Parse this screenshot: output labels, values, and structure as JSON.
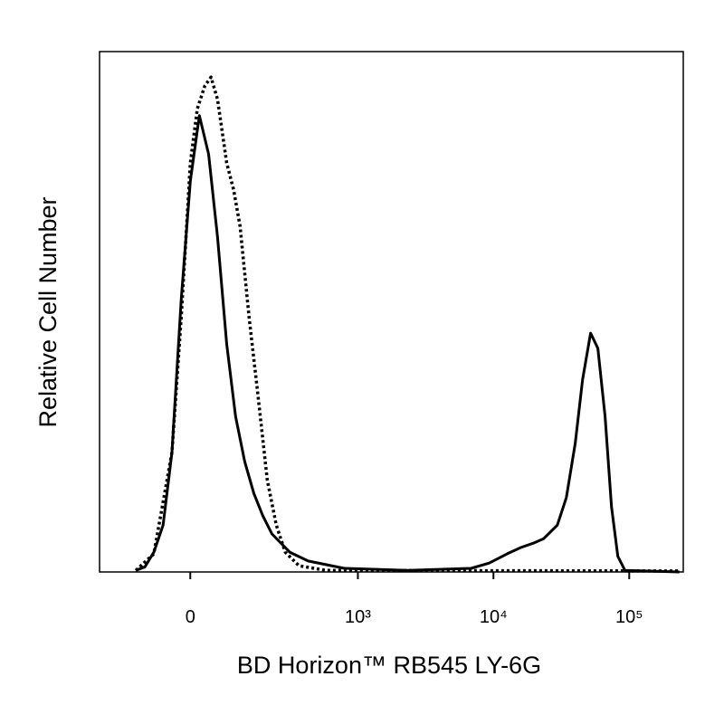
{
  "chart_data": {
    "type": "line",
    "xlabel": "BD Horizon™ RB545 LY-6G",
    "ylabel": "Relative Cell Number",
    "xscale": "biexponential",
    "xlim": [
      -260,
      250000
    ],
    "xticks": [
      0,
      {
        "value": 1000,
        "label": "10³"
      },
      {
        "value": 10000,
        "label": "10⁴"
      },
      {
        "value": 100000,
        "label": "10⁵"
      }
    ],
    "ylim": [
      0,
      100
    ],
    "grid": false,
    "series": [
      {
        "color": "#000000",
        "linestyle": "solid",
        "x": [
          -124,
          -99,
          -77,
          -56,
          -37,
          -18,
          0,
          18,
          37,
          56,
          77,
          99,
          124,
          152,
          183,
          219,
          305,
          424,
          792,
          2335,
          6840,
          9300,
          12640,
          15900,
          20000,
          23400,
          29500,
          34400,
          40000,
          45300,
          51900,
          58700,
          66400,
          74000,
          82400,
          93100,
          234000
        ],
        "values": [
          0.3,
          1.0,
          3.8,
          9.0,
          23.0,
          52.5,
          75.1,
          87.7,
          80.3,
          64.3,
          43.8,
          29.9,
          21.2,
          15.1,
          10.8,
          7.3,
          3.8,
          2.1,
          0.7,
          0.3,
          0.7,
          1.7,
          3.5,
          4.7,
          5.6,
          6.4,
          9.0,
          14.3,
          24.7,
          36.9,
          45.9,
          43.0,
          29.9,
          12.5,
          3.0,
          0.3,
          0
        ]
      },
      {
        "color": "#000000",
        "linestyle": "dotted",
        "x": [
          -124,
          -77,
          -37,
          -18,
          0,
          14,
          29,
          42,
          56,
          77,
          94,
          111,
          137,
          167,
          200,
          238,
          281,
          360,
          580,
          234000
        ],
        "values": [
          0.3,
          3.5,
          23.0,
          49.0,
          78.6,
          89.0,
          93.4,
          95.1,
          90.8,
          78.6,
          73.4,
          66.4,
          49.0,
          33.4,
          17.7,
          9.0,
          3.8,
          1.2,
          0.3,
          0.2
        ]
      }
    ]
  }
}
